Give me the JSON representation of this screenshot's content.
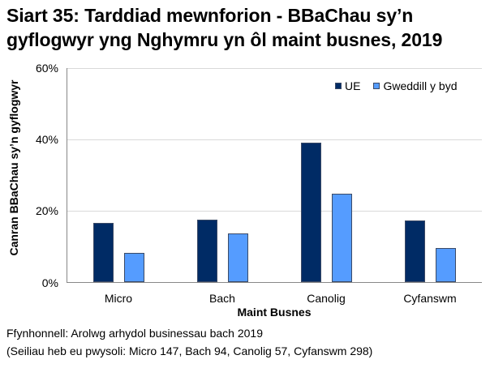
{
  "title": "Siart 35: Tarddiad mewnforion - BBaChau sy’n gyflogwyr yng Nghymru yn ôl maint busnes, 2019",
  "source": "Ffynhonnell: Arolwg arhydol businessau bach 2019",
  "bases": "(Seiliau heb eu pwysoli: Micro 147, Bach 94, Canolig 57, Cyfanswm 298)",
  "colors": {
    "UE": "#002b65",
    "Gweddill y byd": "#559cff"
  },
  "chart_data": {
    "type": "bar",
    "title": "Siart 35: Tarddiad mewnforion - BBaChau sy’n gyflogwyr yng Nghymru yn ôl maint busnes, 2019",
    "xlabel": "Maint Busnes",
    "ylabel": "Canran BBaChau sy’n gyflogwyr",
    "categories": [
      "Micro",
      "Bach",
      "Canolig",
      "Cyfanswm"
    ],
    "series": [
      {
        "name": "UE",
        "color": "#002b65",
        "values": [
          16.5,
          17.4,
          39.1,
          17.2
        ]
      },
      {
        "name": "Gweddill y byd",
        "color": "#559cff",
        "values": [
          8.1,
          13.6,
          24.7,
          9.5
        ]
      }
    ],
    "ylim": [
      0,
      60
    ],
    "yticks": [
      "0%",
      "20%",
      "40%",
      "60%"
    ],
    "grid": true,
    "legend_position": "top-right"
  }
}
